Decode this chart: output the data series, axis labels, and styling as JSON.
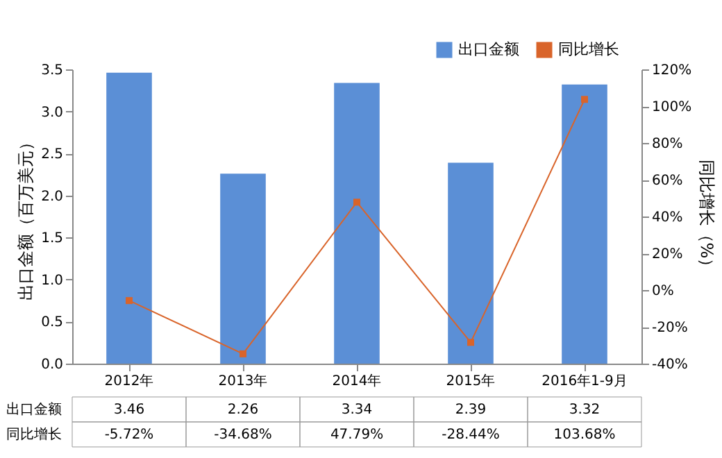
{
  "chart_data": {
    "type": "bar",
    "ylabel": "出口金额（百万美元）",
    "y2label": "同比增长（%）",
    "categories": [
      "2012年",
      "2013年",
      "2014年",
      "2015年",
      "2016年1-9月"
    ],
    "series": [
      {
        "name": "出口金额",
        "color": "#5b8fd6",
        "values": [
          3.46,
          2.26,
          3.34,
          2.39,
          3.32
        ],
        "value_labels": [
          "3.46",
          "2.26",
          "3.34",
          "2.39",
          "3.32"
        ]
      },
      {
        "name": "同比增长",
        "type": "line",
        "axis": "y2",
        "color": "#d9642a",
        "values": [
          -5.72,
          -34.68,
          47.79,
          -28.44,
          103.68
        ],
        "value_labels": [
          "-5.72%",
          "-34.68%",
          "47.79%",
          "-28.44%",
          "103.68%"
        ]
      }
    ],
    "ylim": [
      0,
      3.5
    ],
    "yticks": [
      {
        "value": 0,
        "label": "0.0"
      },
      {
        "value": 0.5,
        "label": "0.5"
      },
      {
        "value": 1,
        "label": "1.0"
      },
      {
        "value": 1.5,
        "label": "1.5"
      },
      {
        "value": 2,
        "label": "2.0"
      },
      {
        "value": 2.5,
        "label": "2.5"
      },
      {
        "value": 3,
        "label": "3.0"
      },
      {
        "value": 3.5,
        "label": "3.5"
      }
    ],
    "y2lim": [
      -40,
      120
    ],
    "y2ticks": [
      {
        "value": -40,
        "label": "-40%"
      },
      {
        "value": -20,
        "label": "-20%"
      },
      {
        "value": 0,
        "label": "0%"
      },
      {
        "value": 20,
        "label": "20%"
      },
      {
        "value": 40,
        "label": "40%"
      },
      {
        "value": 60,
        "label": "60%"
      },
      {
        "value": 80,
        "label": "80%"
      },
      {
        "value": 100,
        "label": "100%"
      },
      {
        "value": 120,
        "label": "120%"
      }
    ],
    "legend": "top right",
    "marker": "square",
    "line_style": "solid",
    "grid": false
  }
}
